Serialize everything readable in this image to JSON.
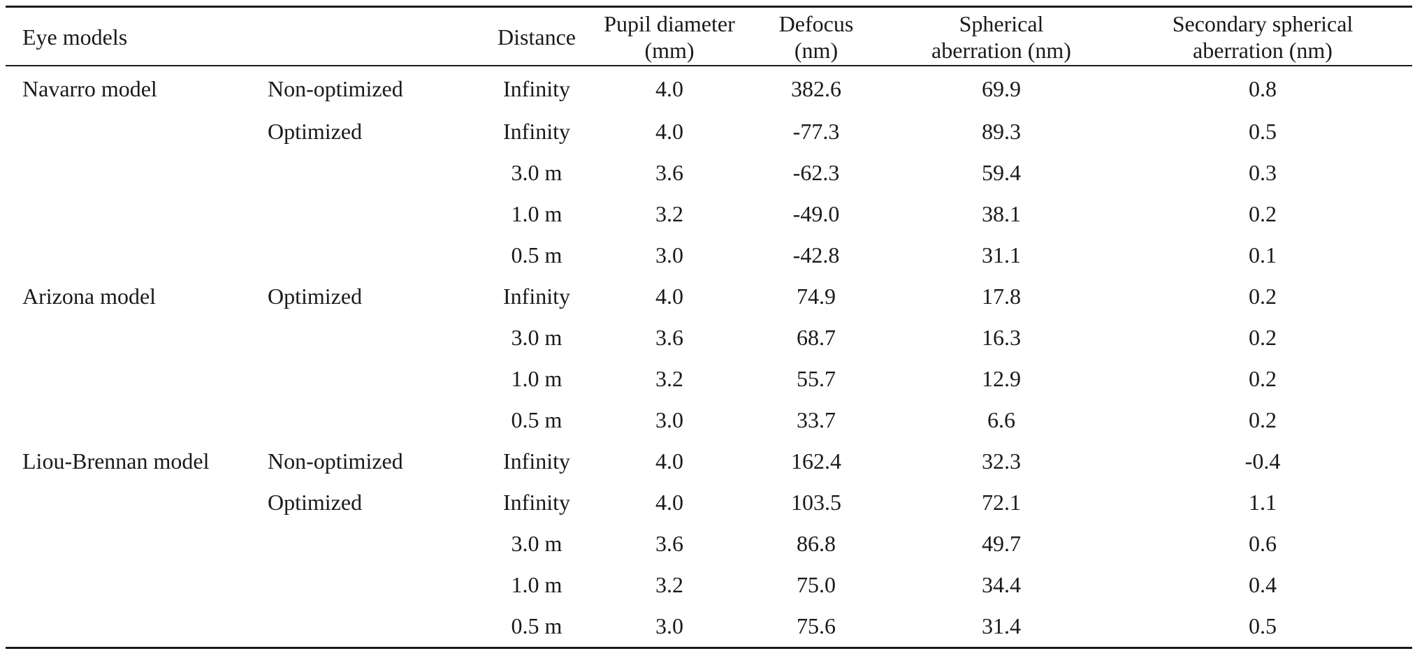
{
  "table": {
    "headers": {
      "eye_models": "Eye models",
      "variant": "",
      "distance": "Distance",
      "pupil_diameter_line1": "Pupil diameter",
      "pupil_diameter_line2": "(mm)",
      "defocus_line1": "Defocus",
      "defocus_line2": "(nm)",
      "spherical_line1": "Spherical",
      "spherical_line2": "aberration (nm)",
      "secondary_line1": "Secondary spherical",
      "secondary_line2": "aberration (nm)"
    },
    "rows": [
      {
        "model": "Navarro model",
        "variant": "Non-optimized",
        "distance": "Infinity",
        "pupil": "4.0",
        "defocus": "382.6",
        "spherical": "69.9",
        "secondary": "0.8"
      },
      {
        "model": "",
        "variant": "Optimized",
        "distance": "Infinity",
        "pupil": "4.0",
        "defocus": "-77.3",
        "spherical": "89.3",
        "secondary": "0.5"
      },
      {
        "model": "",
        "variant": "",
        "distance": "3.0 m",
        "pupil": "3.6",
        "defocus": "-62.3",
        "spherical": "59.4",
        "secondary": "0.3"
      },
      {
        "model": "",
        "variant": "",
        "distance": "1.0 m",
        "pupil": "3.2",
        "defocus": "-49.0",
        "spherical": "38.1",
        "secondary": "0.2"
      },
      {
        "model": "",
        "variant": "",
        "distance": "0.5 m",
        "pupil": "3.0",
        "defocus": "-42.8",
        "spherical": "31.1",
        "secondary": "0.1"
      },
      {
        "model": "Arizona model",
        "variant": "Optimized",
        "distance": "Infinity",
        "pupil": "4.0",
        "defocus": "74.9",
        "spherical": "17.8",
        "secondary": "0.2"
      },
      {
        "model": "",
        "variant": "",
        "distance": "3.0 m",
        "pupil": "3.6",
        "defocus": "68.7",
        "spherical": "16.3",
        "secondary": "0.2"
      },
      {
        "model": "",
        "variant": "",
        "distance": "1.0 m",
        "pupil": "3.2",
        "defocus": "55.7",
        "spherical": "12.9",
        "secondary": "0.2"
      },
      {
        "model": "",
        "variant": "",
        "distance": "0.5 m",
        "pupil": "3.0",
        "defocus": "33.7",
        "spherical": "6.6",
        "secondary": "0.2"
      },
      {
        "model": "Liou-Brennan model",
        "variant": "Non-optimized",
        "distance": "Infinity",
        "pupil": "4.0",
        "defocus": "162.4",
        "spherical": "32.3",
        "secondary": "-0.4"
      },
      {
        "model": "",
        "variant": "Optimized",
        "distance": "Infinity",
        "pupil": "4.0",
        "defocus": "103.5",
        "spherical": "72.1",
        "secondary": "1.1"
      },
      {
        "model": "",
        "variant": "",
        "distance": "3.0 m",
        "pupil": "3.6",
        "defocus": "86.8",
        "spherical": "49.7",
        "secondary": "0.6"
      },
      {
        "model": "",
        "variant": "",
        "distance": "1.0 m",
        "pupil": "3.2",
        "defocus": "75.0",
        "spherical": "34.4",
        "secondary": "0.4"
      },
      {
        "model": "",
        "variant": "",
        "distance": "0.5 m",
        "pupil": "3.0",
        "defocus": "75.6",
        "spherical": "31.4",
        "secondary": "0.5"
      }
    ]
  }
}
